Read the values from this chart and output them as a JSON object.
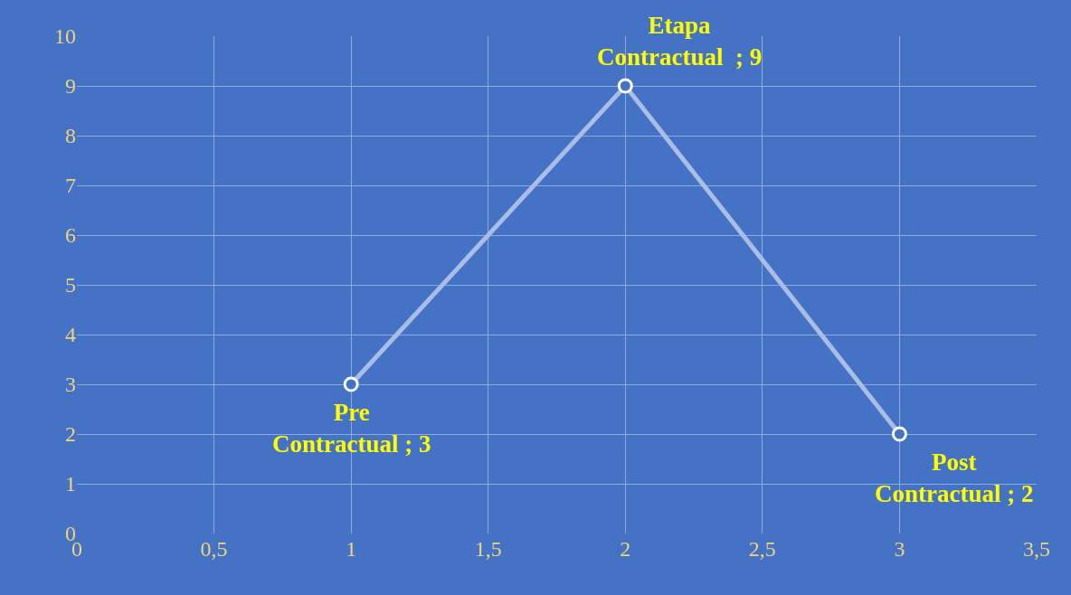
{
  "chart_data": {
    "type": "line",
    "x": [
      1,
      2,
      3
    ],
    "series": [
      {
        "color": "#a9bde6",
        "values": [
          3,
          9,
          2
        ],
        "value_labels": [
          "Pre\nContractual ; 3",
          "Etapa\nContractual  ; 9",
          "Post\nContractual ; 2"
        ]
      }
    ],
    "xlim": [
      0,
      3.5
    ],
    "ylim": [
      0,
      10
    ],
    "xticks": [
      0,
      {
        "value": 0.5,
        "label": "0,5"
      },
      1,
      {
        "value": 1.5,
        "label": "1,5"
      },
      2,
      {
        "value": 2.5,
        "label": "2,5"
      },
      3,
      {
        "value": 3.5,
        "label": "3,5"
      }
    ],
    "yticks": [
      0,
      1,
      2,
      3,
      4,
      5,
      6,
      7,
      8,
      9,
      10
    ],
    "grid": true,
    "marker": "circle",
    "line_style": "solid"
  }
}
